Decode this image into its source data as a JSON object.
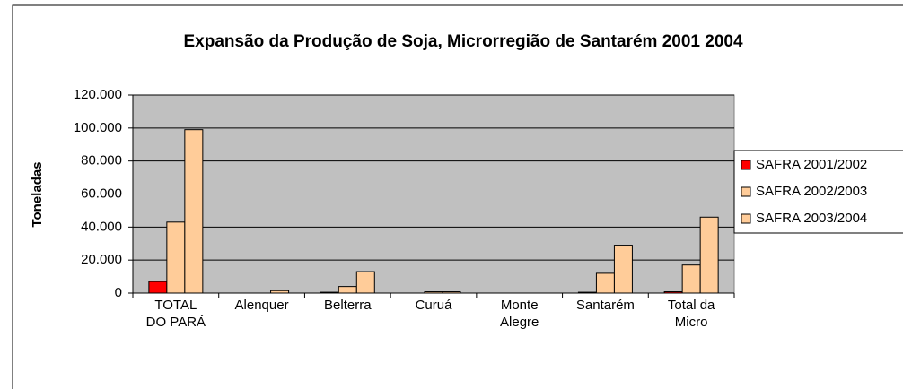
{
  "chart_data": {
    "type": "bar",
    "title": "Expansão da Produção de Soja, Microrregião de Santarém 2001 2004",
    "y_label": "Toneladas",
    "categories": [
      "TOTAL DO PARÁ",
      "Alenquer",
      "Belterra",
      "Curuá",
      "Monte Alegre",
      "Santarém",
      "Total da Micro"
    ],
    "series": [
      {
        "name": "SAFRA 2001/2002",
        "color": "#ff0000",
        "values": [
          7000,
          0,
          500,
          0,
          0,
          500,
          800
        ]
      },
      {
        "name": "SAFRA 2002/2003",
        "color": "#ffcc99",
        "values": [
          43000,
          0,
          4000,
          800,
          0,
          12000,
          17000
        ]
      },
      {
        "name": "SAFRA 2003/2004",
        "color": "#ffcc99",
        "values": [
          99000,
          1500,
          13000,
          800,
          0,
          29000,
          46000
        ]
      }
    ],
    "ylim": [
      0,
      120000
    ],
    "yticks": [
      0,
      {
        "value": 20000,
        "label": "20.000"
      },
      {
        "value": 40000,
        "label": "40.000"
      },
      {
        "value": 60000,
        "label": "60.000"
      },
      {
        "value": 80000,
        "label": "80.000"
      },
      {
        "value": 100000,
        "label": "100.000"
      },
      {
        "value": 120000,
        "label": "120.000"
      }
    ],
    "grid": true,
    "legend": "right",
    "plot_background": "#c0c0c0"
  }
}
